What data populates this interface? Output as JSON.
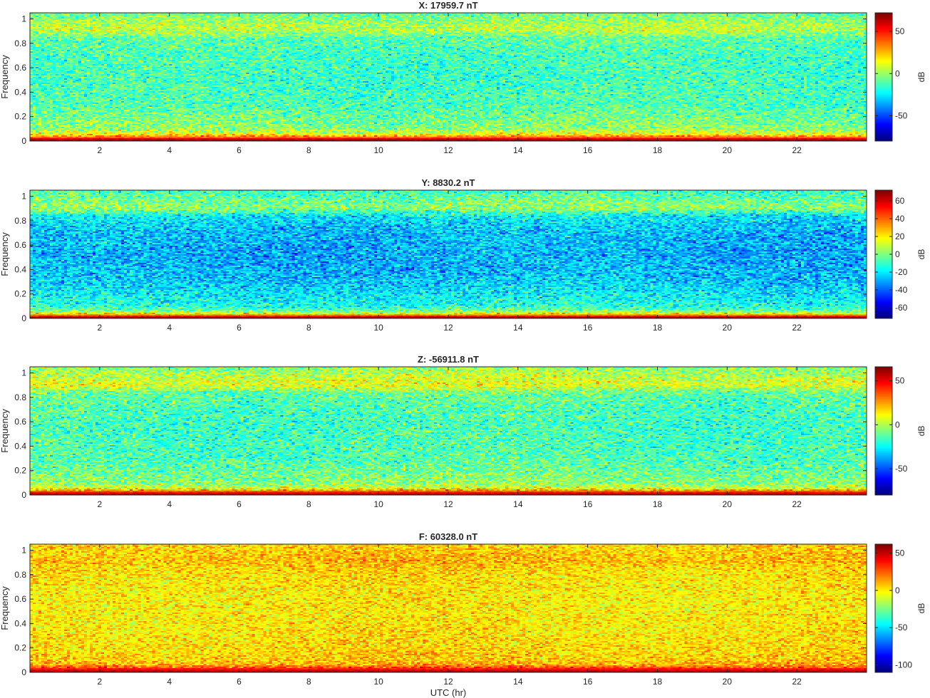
{
  "figure": {
    "xlabel": "UTC (hr)"
  },
  "chart_data": [
    {
      "type": "heatmap",
      "title": "X: 17959.7 nT",
      "xlabel": "",
      "ylabel": "Frequency",
      "xlim": [
        0,
        24
      ],
      "ylim": [
        0,
        1.05
      ],
      "xticks": [
        2,
        4,
        6,
        8,
        10,
        12,
        14,
        16,
        18,
        20,
        22
      ],
      "yticks": [
        0,
        0.2,
        0.4,
        0.6,
        0.8,
        1
      ],
      "colorbar": {
        "label": "dB",
        "ticks": [
          50,
          0,
          -50
        ],
        "range": [
          -80,
          72
        ]
      },
      "colormap": "jet",
      "data": {
        "time_hr": [
          0,
          24
        ],
        "frequency_levels_dB": {
          "0.00": 70,
          "0.01": 68,
          "0.03": 38,
          "0.06": 10,
          "0.10": -2,
          "0.30": -12,
          "0.50": -14,
          "0.70": -13,
          "0.84": -9,
          "0.90": 5,
          "0.95": 3,
          "1.05": -8
        }
      }
    },
    {
      "type": "heatmap",
      "title": "Y: 8830.2 nT",
      "xlabel": "",
      "ylabel": "Frequency",
      "xlim": [
        0,
        24
      ],
      "ylim": [
        0,
        1.05
      ],
      "xticks": [
        2,
        4,
        6,
        8,
        10,
        12,
        14,
        16,
        18,
        20,
        22
      ],
      "yticks": [
        0,
        0.2,
        0.4,
        0.6,
        0.8,
        1
      ],
      "colorbar": {
        "label": "dB",
        "ticks": [
          60,
          40,
          20,
          0,
          -20,
          -40,
          -60
        ],
        "range": [
          -72,
          72
        ]
      },
      "colormap": "jet",
      "data": {
        "time_hr": [
          0,
          24
        ],
        "frequency_levels_dB": {
          "0.00": 70,
          "0.01": 66,
          "0.03": 30,
          "0.06": 0,
          "0.10": -14,
          "0.30": -26,
          "0.50": -30,
          "0.70": -28,
          "0.84": -20,
          "0.90": 2,
          "0.95": 0,
          "1.05": -10
        }
      }
    },
    {
      "type": "heatmap",
      "title": "Z: -56911.8 nT",
      "xlabel": "",
      "ylabel": "Frequency",
      "xlim": [
        0,
        24
      ],
      "ylim": [
        0,
        1.05
      ],
      "xticks": [
        2,
        4,
        6,
        8,
        10,
        12,
        14,
        16,
        18,
        20,
        22
      ],
      "yticks": [
        0,
        0.2,
        0.4,
        0.6,
        0.8,
        1
      ],
      "colorbar": {
        "label": "dB",
        "ticks": [
          50,
          0,
          -50
        ],
        "range": [
          -80,
          66
        ]
      },
      "colormap": "jet",
      "data": {
        "time_hr": [
          0,
          24
        ],
        "frequency_levels_dB": {
          "0.00": 60,
          "0.01": 58,
          "0.03": 35,
          "0.06": 5,
          "0.10": -5,
          "0.30": -14,
          "0.50": -16,
          "0.70": -15,
          "0.84": -10,
          "0.90": 8,
          "0.95": 5,
          "1.05": -5
        }
      }
    },
    {
      "type": "heatmap",
      "title": "F: 60328.0 nT",
      "xlabel": "UTC (hr)",
      "ylabel": "Frequency",
      "xlim": [
        0,
        24
      ],
      "ylim": [
        0,
        1.05
      ],
      "xticks": [
        2,
        4,
        6,
        8,
        10,
        12,
        14,
        16,
        18,
        20,
        22
      ],
      "yticks": [
        0,
        0.2,
        0.4,
        0.6,
        0.8,
        1
      ],
      "colorbar": {
        "label": "dB",
        "ticks": [
          50,
          0,
          -50,
          -100
        ],
        "range": [
          -110,
          62
        ]
      },
      "colormap": "jet",
      "data": {
        "time_hr": [
          0,
          24
        ],
        "frequency_levels_dB": {
          "0.00": 55,
          "0.01": 52,
          "0.03": 35,
          "0.06": 12,
          "0.10": 6,
          "0.30": 2,
          "0.50": 0,
          "0.70": 1,
          "0.84": 4,
          "0.90": 9,
          "0.95": 8,
          "1.05": 5
        }
      }
    }
  ]
}
